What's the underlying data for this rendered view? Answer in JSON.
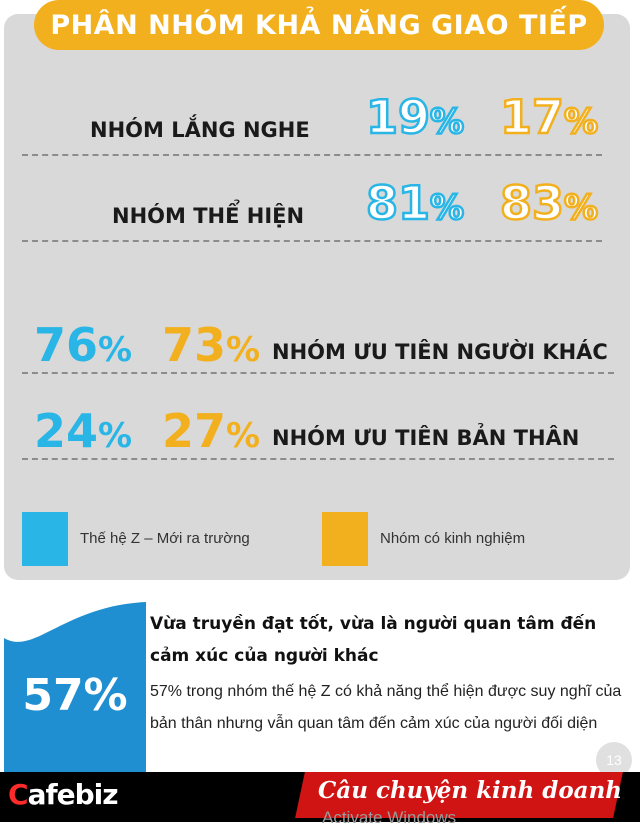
{
  "title": "PHÂN NHÓM KHẢ NĂNG GIAO TIẾP",
  "rows_top": [
    {
      "label": "NHÓM LẮNG NGHE",
      "genz": "19",
      "exp": "17"
    },
    {
      "label": "NHÓM THỂ HIỆN",
      "genz": "81",
      "exp": "83"
    }
  ],
  "rows_bottom": [
    {
      "label": "NHÓM ƯU TIÊN NGƯỜI KHÁC",
      "genz": "76",
      "exp": "73"
    },
    {
      "label": "NHÓM ƯU TIÊN BẢN THÂN",
      "genz": "24",
      "exp": "27"
    }
  ],
  "percent_sign": "%",
  "legend": [
    {
      "label": "Thế hệ Z – Mới ra trường",
      "color": "#29b6e6"
    },
    {
      "label": "Nhóm có kinh nghiệm",
      "color": "#f2b01e"
    }
  ],
  "highlight": {
    "value": "57%",
    "heading": "Vừa truyền đạt tốt, vừa là người quan tâm đến cảm xúc của người khác",
    "body": "57% trong nhóm thế hệ Z có khả năng thể hiện được suy nghĩ của bản thân nhưng vẫn quan tâm đến cảm xúc của người đối diện"
  },
  "page_number": "13",
  "footer": {
    "logo_c": "C",
    "logo_rest": "afe",
    "logo_biz": "biz",
    "slogan": "Câu chuyện kinh doanh",
    "watermark": "Activate Windows"
  },
  "colors": {
    "blue": "#29b6e6",
    "gold": "#f2b01e",
    "panel": "#d9d9d9",
    "red": "#d01414"
  }
}
